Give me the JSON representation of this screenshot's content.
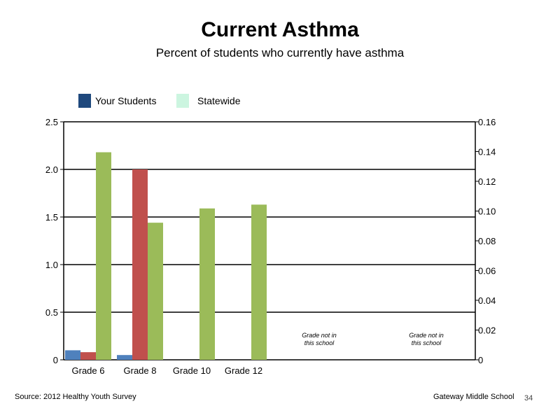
{
  "chart_data": {
    "type": "bar",
    "title": "Current Asthma",
    "subtitle": "Percent of students who currently have asthma",
    "categories": [
      "Grade 6",
      "Grade 8",
      "Grade 10",
      "Grade 12",
      "",
      ""
    ],
    "series": [
      {
        "name": "Your Students",
        "legend_color": "#1F497D",
        "axis": "left",
        "values": [
          0.1,
          0.05,
          null,
          null,
          null,
          null
        ],
        "color": "#4F81BD"
      },
      {
        "name": "",
        "axis": "left",
        "values": [
          0.08,
          2.0,
          null,
          null,
          null,
          null
        ],
        "color": "#C0504D"
      },
      {
        "name": "Statewide",
        "legend_color": "#CCF5E0",
        "axis": "left",
        "values": [
          2.18,
          1.44,
          1.59,
          1.63,
          null,
          null
        ],
        "color": "#9BBB59"
      }
    ],
    "y_left": {
      "min": 0,
      "max": 2.5,
      "ticks": [
        "0",
        "0.5",
        "1.0",
        "1.5",
        "2.0",
        "2.5"
      ]
    },
    "y_right": {
      "min": 0,
      "max": 0.16,
      "ticks": [
        "0",
        "0.02",
        "0.04",
        "0.06",
        "0.08",
        "0.10",
        "0.12",
        "0.14",
        "0.16"
      ]
    },
    "gridlines": true,
    "legend_position": "top-left",
    "annotations": [
      {
        "category_index": 4,
        "lines": [
          "Grade not in",
          "this school"
        ]
      },
      {
        "category_index": 5,
        "lines": [
          "Grade not in",
          "this school"
        ]
      }
    ]
  },
  "footer": {
    "source": "Source: 2012 Healthy Youth Survey",
    "school": "Gateway Middle  School",
    "page_number": "34"
  }
}
